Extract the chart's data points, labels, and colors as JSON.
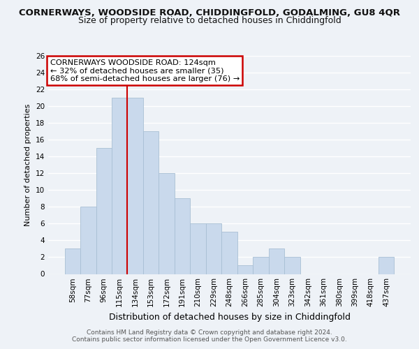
{
  "title1": "CORNERWAYS, WOODSIDE ROAD, CHIDDINGFOLD, GODALMING, GU8 4QR",
  "title2": "Size of property relative to detached houses in Chiddingfold",
  "xlabel": "Distribution of detached houses by size in Chiddingfold",
  "ylabel": "Number of detached properties",
  "categories": [
    "58sqm",
    "77sqm",
    "96sqm",
    "115sqm",
    "134sqm",
    "153sqm",
    "172sqm",
    "191sqm",
    "210sqm",
    "229sqm",
    "248sqm",
    "266sqm",
    "285sqm",
    "304sqm",
    "323sqm",
    "342sqm",
    "361sqm",
    "380sqm",
    "399sqm",
    "418sqm",
    "437sqm"
  ],
  "values": [
    3,
    8,
    15,
    21,
    21,
    17,
    12,
    9,
    6,
    6,
    5,
    1,
    2,
    3,
    2,
    0,
    0,
    0,
    0,
    0,
    2
  ],
  "bar_color": "#c9d9ec",
  "bar_edge_color": "#a8bfd4",
  "vline_color": "#cc0000",
  "vline_pos": 3.5,
  "annotation_line1": "CORNERWAYS WOODSIDE ROAD: 124sqm",
  "annotation_line2": "← 32% of detached houses are smaller (35)",
  "annotation_line3": "68% of semi-detached houses are larger (76) →",
  "annotation_box_color": "#ffffff",
  "annotation_box_edge": "#cc0000",
  "ylim": [
    0,
    26
  ],
  "yticks": [
    0,
    2,
    4,
    6,
    8,
    10,
    12,
    14,
    16,
    18,
    20,
    22,
    24,
    26
  ],
  "footer1": "Contains HM Land Registry data © Crown copyright and database right 2024.",
  "footer2": "Contains public sector information licensed under the Open Government Licence v3.0.",
  "bg_color": "#eef2f7",
  "grid_color": "#ffffff",
  "title1_fontsize": 9.5,
  "title2_fontsize": 9,
  "ylabel_fontsize": 8,
  "xlabel_fontsize": 9,
  "tick_fontsize": 7.5,
  "ann_fontsize": 8.2,
  "footer_fontsize": 6.5
}
